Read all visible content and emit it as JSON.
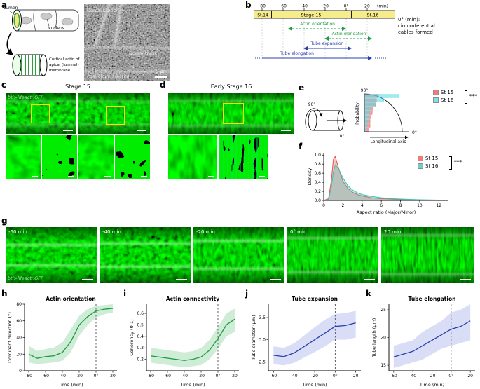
{
  "panels": {
    "a": "a",
    "b": "b",
    "c": "c",
    "d": "d",
    "e": "e",
    "f": "f",
    "g": "g",
    "h": "h",
    "i": "i",
    "j": "j",
    "k": "k"
  },
  "panel_a": {
    "lumen": "Lumen",
    "nucleus": "Nucleus",
    "cortical_line1": "Cortical actin of",
    "cortical_line2": "apical (luminal)",
    "cortical_line3": "membrane",
    "dorsal_branch": "Dorsal branch",
    "dorsal_trunk": "Dorsal trunk",
    "stain": "Phalloidin (F-actin)",
    "scale": "5 µm"
  },
  "panel_b": {
    "stages": [
      "St.14",
      "Stage 15",
      "St.16"
    ],
    "ticks": [
      "-80",
      "-60",
      "-40",
      "-20",
      "0°",
      "20"
    ],
    "unit": "(min)",
    "arrow_actin_orientation": "Actin orientation",
    "arrow_actin_elongation": "Actin elongation",
    "arrow_tube_expansion": "Tube expansion",
    "arrow_tube_elongation": "Tube elongation",
    "note_line1": "0° (min):",
    "note_line2": "circumferential",
    "note_line3": "cables formed"
  },
  "panel_c": {
    "title": "Stage 15",
    "reporter": "btl>lifeact::GFP"
  },
  "panel_d": {
    "title": "Early Stage 16"
  },
  "panel_e": {
    "deg90": "90°",
    "deg0": "0°",
    "ylabel": "Probability",
    "xlabel": "Longitudinal axis",
    "legend": [
      {
        "label": "St 15",
        "color": "#e8524f"
      },
      {
        "label": "St 16",
        "color": "#52d9e6"
      }
    ],
    "sig": "***"
  },
  "panel_f": {
    "legend": [
      {
        "label": "St 15",
        "color": "#e8524f"
      },
      {
        "label": "St 16",
        "color": "#3fbfb4"
      }
    ],
    "sig": "***"
  },
  "panel_g": {
    "times": [
      "-60 min",
      "-40 min",
      "-20 min",
      "0° min",
      "20 min"
    ],
    "reporter": "btl>lifeact::GFP"
  },
  "chart_data": [
    {
      "id": "e",
      "type": "fan",
      "angle_bins_deg": [
        90,
        80,
        70,
        60,
        50,
        40,
        30,
        20,
        10
      ],
      "series": [
        {
          "name": "St 15",
          "color": "#e8524f",
          "values": [
            0.13,
            0.11,
            0.1,
            0.08,
            0.07,
            0.06,
            0.05,
            0.05,
            0.04
          ]
        },
        {
          "name": "St 16",
          "color": "#52d9e6",
          "values": [
            0.32,
            0.18,
            0.1,
            0.06,
            0.045,
            0.035,
            0.03,
            0.02,
            0.015
          ]
        }
      ],
      "ylabel": "Probability",
      "xlabel": "Longitudinal axis"
    },
    {
      "id": "f",
      "type": "density",
      "xlabel": "Aspect ratio (Major/Minor)",
      "ylabel": "Density",
      "xlim": [
        0,
        13
      ],
      "ylim": [
        0,
        1.05
      ],
      "xticks": [
        {
          "v": 0,
          "l": "0"
        },
        {
          "v": 2,
          "l": "2"
        },
        {
          "v": 4,
          "l": "4"
        },
        {
          "v": 6,
          "l": "6"
        },
        {
          "v": 8,
          "l": "8"
        },
        {
          "v": 10,
          "l": "10"
        },
        {
          "v": 12,
          "l": "12"
        }
      ],
      "yticks": [
        {
          "v": 0,
          "l": "0.0"
        },
        {
          "v": 0.2,
          "l": "0.2"
        },
        {
          "v": 0.4,
          "l": "0.4"
        },
        {
          "v": 0.6,
          "l": "0.6"
        },
        {
          "v": 0.8,
          "l": "0.8"
        },
        {
          "v": 1.0,
          "l": "1.0"
        }
      ],
      "series": [
        {
          "name": "St 15",
          "color": "#e8524f",
          "x": [
            0,
            0.5,
            0.8,
            1,
            1.2,
            1.5,
            2,
            2.5,
            3,
            3.5,
            4,
            5,
            6,
            7,
            8,
            10,
            12,
            13
          ],
          "y": [
            0,
            0.04,
            0.45,
            0.9,
            0.97,
            0.75,
            0.42,
            0.27,
            0.18,
            0.13,
            0.1,
            0.06,
            0.04,
            0.03,
            0.02,
            0.01,
            0.005,
            0
          ]
        },
        {
          "name": "St 16",
          "color": "#3fbfb4",
          "x": [
            0,
            0.5,
            0.8,
            1,
            1.2,
            1.5,
            2,
            2.5,
            3,
            3.5,
            4,
            5,
            6,
            7,
            8,
            10,
            12,
            13
          ],
          "y": [
            0,
            0.02,
            0.3,
            0.62,
            0.78,
            0.72,
            0.5,
            0.33,
            0.23,
            0.17,
            0.13,
            0.09,
            0.06,
            0.04,
            0.03,
            0.015,
            0.008,
            0
          ]
        }
      ]
    },
    {
      "id": "h",
      "type": "line",
      "title": "Actin orientation",
      "xlabel": "Time (min)",
      "ylabel": "Dominant direction (°)",
      "color": "#1a9c3f",
      "band": "rgba(60,180,90,0.25)",
      "xlim": [
        -85,
        25
      ],
      "ylim": [
        0,
        80
      ],
      "vline": 0,
      "x": [
        -80,
        -70,
        -60,
        -50,
        -40,
        -30,
        -20,
        -10,
        0,
        10,
        20
      ],
      "mean": [
        20,
        15,
        17,
        18,
        22,
        35,
        55,
        65,
        72,
        74,
        75
      ],
      "lower": [
        10,
        8,
        9,
        10,
        12,
        22,
        42,
        55,
        64,
        68,
        70
      ],
      "upper": [
        30,
        24,
        26,
        28,
        34,
        50,
        66,
        74,
        78,
        79,
        80
      ],
      "xticks": [
        {
          "v": -80,
          "l": "-80"
        },
        {
          "v": -60,
          "l": "-60"
        },
        {
          "v": -40,
          "l": "-40"
        },
        {
          "v": -20,
          "l": "-20"
        },
        {
          "v": 0,
          "l": "0°"
        },
        {
          "v": 20,
          "l": "20"
        }
      ],
      "yticks": [
        {
          "v": 0,
          "l": "0"
        },
        {
          "v": 20,
          "l": "20"
        },
        {
          "v": 40,
          "l": "40"
        },
        {
          "v": 60,
          "l": "60"
        },
        {
          "v": 80,
          "l": "80"
        }
      ]
    },
    {
      "id": "i",
      "type": "line",
      "title": "Actin connectivity",
      "xlabel": "Time (min)",
      "ylabel": "Coherency (0-1)",
      "color": "#1a9c3f",
      "band": "rgba(60,180,90,0.25)",
      "xlim": [
        -85,
        25
      ],
      "ylim": [
        0.1,
        0.68
      ],
      "vline": 0,
      "x": [
        -80,
        -70,
        -60,
        -50,
        -40,
        -30,
        -20,
        -10,
        0,
        10,
        20
      ],
      "mean": [
        0.23,
        0.22,
        0.21,
        0.2,
        0.19,
        0.2,
        0.22,
        0.28,
        0.38,
        0.5,
        0.55
      ],
      "lower": [
        0.17,
        0.16,
        0.15,
        0.14,
        0.13,
        0.14,
        0.15,
        0.2,
        0.29,
        0.4,
        0.44
      ],
      "upper": [
        0.3,
        0.29,
        0.28,
        0.27,
        0.26,
        0.27,
        0.3,
        0.37,
        0.48,
        0.6,
        0.64
      ],
      "xticks": [
        {
          "v": -80,
          "l": "-80"
        },
        {
          "v": -60,
          "l": "-60"
        },
        {
          "v": -40,
          "l": "-40"
        },
        {
          "v": -20,
          "l": "-20"
        },
        {
          "v": 0,
          "l": "0°"
        },
        {
          "v": 20,
          "l": "20"
        }
      ],
      "yticks": [
        {
          "v": 0.2,
          "l": "0.2"
        },
        {
          "v": 0.3,
          "l": "0.3"
        },
        {
          "v": 0.4,
          "l": "0.4"
        },
        {
          "v": 0.5,
          "l": "0.5"
        },
        {
          "v": 0.6,
          "l": "0.6"
        }
      ]
    },
    {
      "id": "j",
      "type": "line",
      "title": "Tube expansion",
      "xlabel": "Time (min)",
      "ylabel": "Tube diameter (µm)",
      "color": "#2b3fb0",
      "band": "rgba(80,100,210,0.22)",
      "xlim": [
        -65,
        25
      ],
      "ylim": [
        2.3,
        3.8
      ],
      "vline": 0,
      "x": [
        -60,
        -50,
        -40,
        -30,
        -20,
        -10,
        0,
        10,
        20
      ],
      "mean": [
        2.65,
        2.62,
        2.7,
        2.85,
        3.0,
        3.15,
        3.3,
        3.32,
        3.38
      ],
      "lower": [
        2.45,
        2.42,
        2.48,
        2.6,
        2.72,
        2.85,
        3.0,
        3.0,
        3.05
      ],
      "upper": [
        2.85,
        2.82,
        2.92,
        3.1,
        3.28,
        3.45,
        3.58,
        3.6,
        3.65
      ],
      "xticks": [
        {
          "v": -60,
          "l": "-60"
        },
        {
          "v": -40,
          "l": "-40"
        },
        {
          "v": -20,
          "l": "-20"
        },
        {
          "v": 0,
          "l": "0°"
        },
        {
          "v": 20,
          "l": "20"
        }
      ],
      "yticks": [
        {
          "v": 2.5,
          "l": "2.5"
        },
        {
          "v": 3.0,
          "l": "3.0"
        },
        {
          "v": 3.5,
          "l": "3.5"
        }
      ]
    },
    {
      "id": "k",
      "type": "line",
      "title": "Tube elongation",
      "xlabel": "Time (min)",
      "ylabel": "Tube length (µm)",
      "color": "#2b3fb0",
      "band": "rgba(80,100,210,0.22)",
      "xlim": [
        -65,
        25
      ],
      "ylim": [
        14,
        26
      ],
      "vline": 0,
      "x": [
        -60,
        -50,
        -40,
        -30,
        -20,
        -10,
        0,
        10,
        20
      ],
      "mean": [
        16.5,
        17,
        17.5,
        18.5,
        19.5,
        20.5,
        21.5,
        22,
        23
      ],
      "lower": [
        14.5,
        15,
        15.5,
        16,
        17,
        18,
        18.5,
        19,
        19.5
      ],
      "upper": [
        18.5,
        19,
        19.5,
        21,
        22,
        23,
        24.5,
        25,
        26
      ],
      "xticks": [
        {
          "v": -60,
          "l": "-60"
        },
        {
          "v": -40,
          "l": "-40"
        },
        {
          "v": -20,
          "l": "-20"
        },
        {
          "v": 0,
          "l": "0°"
        },
        {
          "v": 20,
          "l": "20"
        }
      ],
      "yticks": [
        {
          "v": 15,
          "l": "15"
        },
        {
          "v": 20,
          "l": "20"
        },
        {
          "v": 25,
          "l": "25"
        }
      ]
    }
  ]
}
